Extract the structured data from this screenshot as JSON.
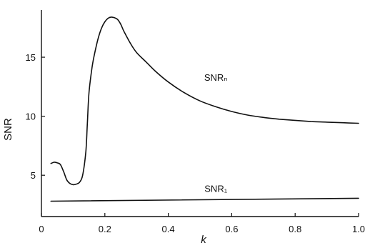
{
  "chart_data": {
    "type": "line",
    "title": "",
    "xlabel": "k",
    "ylabel": "SNR",
    "xlim": [
      0,
      1.0
    ],
    "ylim": [
      1.5,
      19
    ],
    "grid": false,
    "legend": "none",
    "x_ticks": [
      {
        "value": 0,
        "label": "0"
      },
      {
        "value": 0.2,
        "label": "0.2"
      },
      {
        "value": 0.4,
        "label": "0.4"
      },
      {
        "value": 0.6,
        "label": "0.6"
      },
      {
        "value": 0.8,
        "label": "0.8"
      },
      {
        "value": 1.0,
        "label": "1.0"
      }
    ],
    "y_ticks": [
      {
        "value": 5,
        "label": "5"
      },
      {
        "value": 10,
        "label": "10"
      },
      {
        "value": 15,
        "label": "15"
      }
    ],
    "series": [
      {
        "name": "SNRₙ",
        "label_at": [
          0.55,
          13.0
        ],
        "x": [
          0.03,
          0.04,
          0.05,
          0.06,
          0.07,
          0.08,
          0.09,
          0.1,
          0.11,
          0.12,
          0.13,
          0.14,
          0.145,
          0.15,
          0.16,
          0.17,
          0.18,
          0.19,
          0.2,
          0.21,
          0.22,
          0.23,
          0.24,
          0.25,
          0.26,
          0.28,
          0.3,
          0.33,
          0.36,
          0.4,
          0.45,
          0.5,
          0.55,
          0.6,
          0.65,
          0.7,
          0.75,
          0.8,
          0.85,
          0.9,
          0.95,
          1.0
        ],
        "y": [
          6.0,
          6.1,
          6.05,
          5.9,
          5.3,
          4.6,
          4.3,
          4.2,
          4.25,
          4.4,
          5.0,
          7.0,
          9.5,
          12.0,
          14.2,
          15.6,
          16.7,
          17.5,
          18.0,
          18.3,
          18.4,
          18.35,
          18.2,
          17.8,
          17.2,
          16.2,
          15.4,
          14.6,
          13.8,
          12.9,
          12.0,
          11.3,
          10.8,
          10.4,
          10.1,
          9.9,
          9.75,
          9.65,
          9.55,
          9.5,
          9.45,
          9.4
        ]
      },
      {
        "name": "SNR₁",
        "label_at": [
          0.55,
          3.6
        ],
        "x": [
          0.03,
          1.0
        ],
        "y": [
          2.8,
          3.05
        ]
      }
    ]
  }
}
